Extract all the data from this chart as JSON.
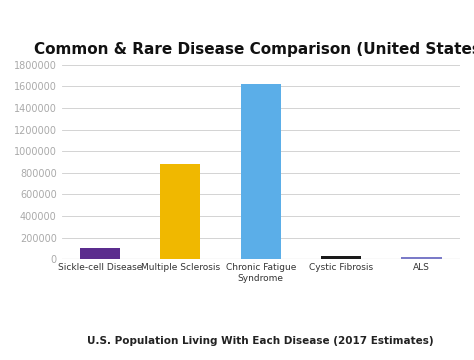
{
  "title": "Common & Rare Disease Comparison (United States)",
  "subtitle": "U.S. Population Living With Each Disease (2017 Estimates)",
  "categories": [
    "Sickle-cell Disease",
    "Multiple Sclerosis",
    "Chronic Fatigue\nSyndrome",
    "Cystic Fibrosis",
    "ALS"
  ],
  "values": [
    100000,
    880000,
    1620000,
    30000,
    20000
  ],
  "bar_colors": [
    "#5b2d8e",
    "#f0b800",
    "#5baee8",
    "#1a1a1a",
    "#7b7bc8"
  ],
  "ylim": [
    0,
    1800000
  ],
  "yticks": [
    0,
    200000,
    400000,
    600000,
    800000,
    1000000,
    1200000,
    1400000,
    1600000,
    1800000
  ],
  "background_color": "#ffffff",
  "title_fontsize": 11,
  "subtitle_fontsize": 7.5,
  "xtick_fontsize": 6.5,
  "ytick_fontsize": 7,
  "grid_color": "#cccccc",
  "ytick_color": "#aaaaaa",
  "xtick_color": "#333333",
  "title_color": "#111111",
  "subtitle_color": "#222222",
  "bar_width": 0.5
}
